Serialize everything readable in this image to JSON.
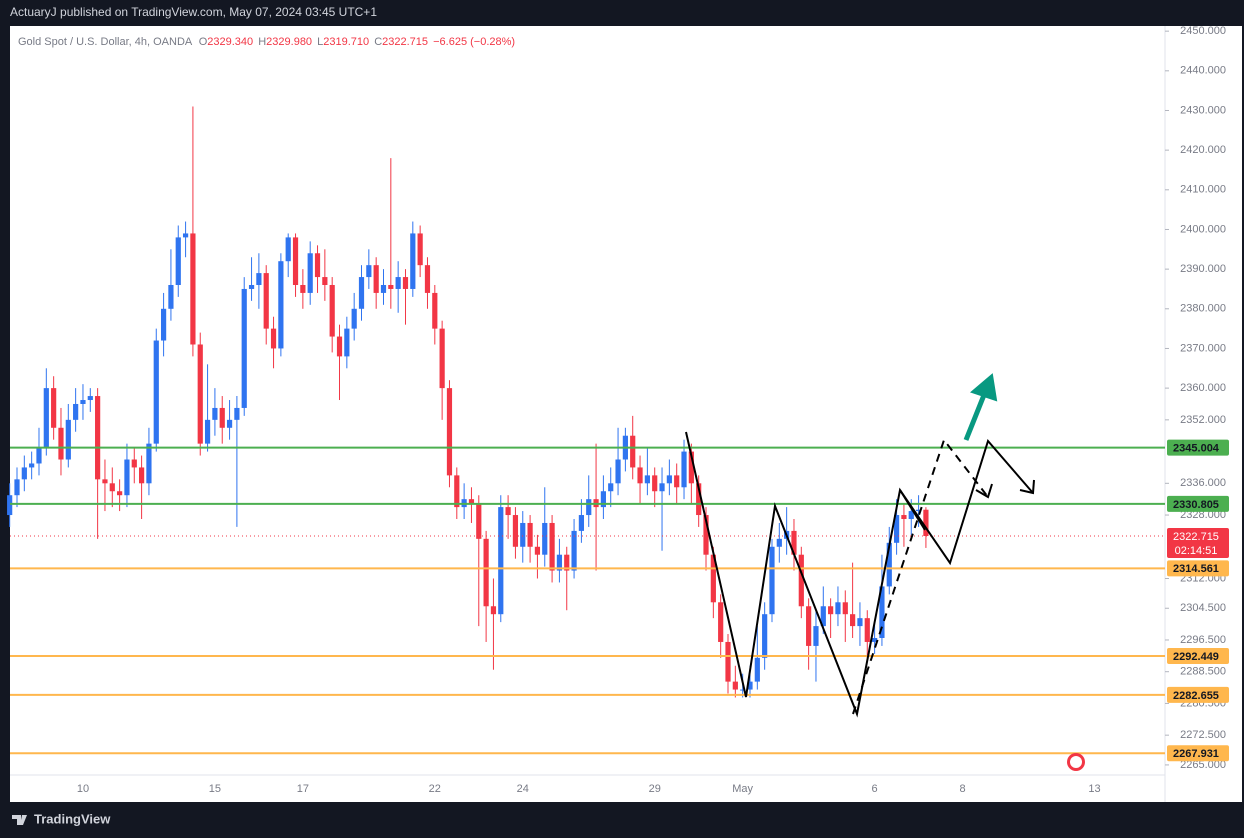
{
  "header": {
    "published": "ActuaryJ published on TradingView.com, May 07, 2024 03:45 UTC+1"
  },
  "footer": {
    "brand": "TradingView"
  },
  "chart_data": {
    "type": "candlestick",
    "symbol": "Gold Spot / U.S. Dollar, 4h, OANDA",
    "legend": [
      {
        "key": "O",
        "value": "2329.340"
      },
      {
        "key": "H",
        "value": "2329.980"
      },
      {
        "key": "L",
        "value": "2319.710"
      },
      {
        "key": "C",
        "value": "2322.715"
      }
    ],
    "change": "−6.625 (−0.28%)",
    "up_color": "#2f74f0",
    "down_color": "#f23645",
    "categories": [
      null,
      null,
      null,
      null,
      null,
      null,
      null,
      null,
      null,
      null,
      "10",
      null,
      null,
      null,
      null,
      null,
      null,
      null,
      null,
      null,
      null,
      null,
      null,
      null,
      null,
      null,
      null,
      null,
      "15",
      null,
      null,
      null,
      null,
      null,
      null,
      null,
      null,
      null,
      null,
      null,
      "17",
      null,
      null,
      null,
      null,
      null,
      null,
      null,
      null,
      null,
      null,
      null,
      null,
      null,
      null,
      null,
      null,
      null,
      "22",
      null,
      null,
      null,
      null,
      null,
      null,
      null,
      null,
      null,
      null,
      null,
      "24",
      null,
      null,
      null,
      null,
      null,
      null,
      null,
      null,
      null,
      null,
      null,
      null,
      null,
      null,
      null,
      null,
      null,
      "29",
      null,
      null,
      null,
      null,
      null,
      null,
      null,
      null,
      null,
      null,
      null,
      "May",
      null,
      null,
      null,
      null,
      null,
      null,
      null,
      null,
      null,
      null,
      null,
      null,
      null,
      null,
      null,
      null,
      null,
      "6",
      null,
      null,
      null,
      null,
      null,
      null,
      null,
      null,
      null,
      null,
      null,
      "8",
      null,
      null,
      null,
      null,
      null,
      null,
      null,
      null,
      null,
      null,
      null,
      null,
      null,
      null,
      null,
      null,
      null,
      "13"
    ],
    "open": [
      2328,
      2333,
      2337,
      2340,
      2341,
      2345,
      2360,
      2350,
      2342,
      2352,
      2356,
      2357,
      2358,
      2337,
      2336,
      2334,
      2333,
      2342,
      2340,
      2336,
      2346,
      2372,
      2380,
      2386,
      2398,
      2399,
      2371,
      2346,
      2352,
      2355,
      2350,
      2352,
      2355,
      2385,
      2386,
      2389,
      2375,
      2370,
      2392,
      2398,
      2386,
      2384,
      2394,
      2388,
      2386,
      2373,
      2368,
      2375,
      2380,
      2388,
      2391,
      2384,
      2386,
      2385,
      2388,
      2385,
      2399,
      2391,
      2384,
      2375,
      2360,
      2338,
      2330,
      2332,
      2331,
      2322,
      2305,
      2303,
      2330,
      2328,
      2320,
      2326,
      2320,
      2318,
      2326,
      2314,
      2318,
      2314,
      2324,
      2328,
      2332,
      2330,
      2334,
      2336,
      2342,
      2348,
      2340,
      2336,
      2338,
      2334,
      2336,
      2338,
      2335,
      2344,
      2336,
      2328,
      2318,
      2306,
      2296,
      2286,
      2284,
      2284,
      2286,
      2292,
      2303,
      2320,
      2322,
      2324,
      2318,
      2305,
      2295,
      2300,
      2305,
      2303,
      2306,
      2303,
      2300,
      2302,
      2296,
      2297,
      2310,
      2321,
      2328,
      2327,
      2329,
      2329.34,
      null,
      null,
      null,
      null,
      null,
      null,
      null,
      null,
      null,
      null,
      null,
      null,
      null,
      null,
      null,
      null,
      null,
      null,
      null,
      null,
      null,
      null,
      null
    ],
    "high": [
      2336,
      2340,
      2343,
      2344,
      2350,
      2365,
      2363,
      2355,
      2356,
      2360,
      2361,
      2360,
      2360,
      2342,
      2340,
      2337,
      2346,
      2345,
      2343,
      2350,
      2375,
      2384,
      2395,
      2401,
      2402,
      2431,
      2374,
      2366,
      2360,
      2358,
      2357,
      2358,
      2388,
      2393,
      2394,
      2391,
      2378,
      2394,
      2399,
      2399,
      2390,
      2397,
      2396,
      2395,
      2388,
      2376,
      2378,
      2384,
      2391,
      2395,
      2393,
      2390,
      2418,
      2392,
      2390,
      2402,
      2401,
      2393,
      2386,
      2377,
      2362,
      2340,
      2336,
      2335,
      2333,
      2324,
      2312,
      2333,
      2333,
      2330,
      2329,
      2328,
      2323,
      2335,
      2328,
      2322,
      2320,
      2327,
      2332,
      2338,
      2346,
      2338,
      2340,
      2350,
      2350,
      2353,
      2343,
      2345,
      2340,
      2340,
      2342,
      2341,
      2347,
      2346,
      2338,
      2330,
      2320,
      2308,
      2298,
      2290,
      2288,
      2290,
      2300,
      2306,
      2322,
      2326,
      2330,
      2327,
      2320,
      2307,
      2304,
      2310,
      2307,
      2310,
      2309,
      2316,
      2306,
      2304,
      2301,
      2318,
      2325,
      2332,
      2331,
      2332,
      2333,
      2329.98,
      null,
      null,
      null,
      null,
      null,
      null,
      null,
      null,
      null,
      null,
      null,
      null,
      null,
      null,
      null,
      null,
      null,
      null,
      null,
      null,
      null,
      null,
      null
    ],
    "low": [
      2325,
      2330,
      2334,
      2337,
      2338,
      2343,
      2347,
      2338,
      2340,
      2349,
      2352,
      2354,
      2322,
      2329,
      2330,
      2329,
      2330,
      2336,
      2327,
      2333,
      2344,
      2368,
      2377,
      2383,
      2393,
      2368,
      2343,
      2344,
      2348,
      2346,
      2347,
      2325,
      2353,
      2382,
      2380,
      2371,
      2365,
      2368,
      2388,
      2383,
      2380,
      2381,
      2384,
      2382,
      2369,
      2357,
      2365,
      2372,
      2377,
      2385,
      2380,
      2381,
      2380,
      2379,
      2376,
      2383,
      2388,
      2380,
      2371,
      2352,
      2335,
      2327,
      2327,
      2326,
      2300,
      2296,
      2289,
      2301,
      2322,
      2317,
      2316,
      2316,
      2312,
      2315,
      2311,
      2311,
      2304,
      2312,
      2321,
      2325,
      2314,
      2327,
      2330,
      2333,
      2339,
      2337,
      2331,
      2333,
      2330,
      2319,
      2333,
      2331,
      2332,
      2331,
      2325,
      2314,
      2302,
      2292,
      2283,
      2282,
      2282,
      2282,
      2284,
      2289,
      2301,
      2316,
      2318,
      2314,
      2302,
      2289,
      2286,
      2298,
      2297,
      2300,
      2296,
      2297,
      2295,
      2292,
      2293,
      2295,
      2308,
      2318,
      2320,
      2323,
      2325,
      2319.71,
      null,
      null,
      null,
      null,
      null,
      null,
      null,
      null,
      null,
      null,
      null,
      null,
      null,
      null,
      null,
      null,
      null,
      null,
      null,
      null,
      null,
      null,
      null
    ],
    "close": [
      2333,
      2337,
      2340,
      2341,
      2345,
      2360,
      2350,
      2342,
      2352,
      2356,
      2357,
      2358,
      2337,
      2336,
      2334,
      2333,
      2342,
      2340,
      2336,
      2346,
      2372,
      2380,
      2386,
      2398,
      2399,
      2371,
      2346,
      2352,
      2355,
      2350,
      2352,
      2355,
      2385,
      2386,
      2389,
      2375,
      2370,
      2392,
      2398,
      2386,
      2384,
      2394,
      2388,
      2386,
      2373,
      2368,
      2375,
      2380,
      2388,
      2391,
      2384,
      2386,
      2385,
      2388,
      2385,
      2399,
      2391,
      2384,
      2375,
      2360,
      2338,
      2330,
      2332,
      2331,
      2322,
      2305,
      2303,
      2330,
      2328,
      2320,
      2326,
      2320,
      2318,
      2326,
      2314,
      2318,
      2314,
      2324,
      2328,
      2332,
      2330,
      2334,
      2336,
      2342,
      2348,
      2340,
      2336,
      2338,
      2334,
      2336,
      2338,
      2335,
      2344,
      2336,
      2328,
      2318,
      2306,
      2296,
      2286,
      2284,
      2284,
      2286,
      2292,
      2303,
      2320,
      2322,
      2324,
      2318,
      2305,
      2295,
      2300,
      2305,
      2303,
      2306,
      2303,
      2300,
      2302,
      2296,
      2297,
      2310,
      2321,
      2328,
      2327,
      2329,
      2329.34,
      2322.715,
      null,
      null,
      null,
      null,
      null,
      null,
      null,
      null,
      null,
      null,
      null,
      null,
      null,
      null,
      null,
      null,
      null,
      null,
      null,
      null,
      null,
      null,
      null
    ],
    "ylim": [
      2261.7,
      2451.3
    ],
    "yticks": [
      {
        "value": 2450,
        "label": "2450.000"
      },
      {
        "value": 2440,
        "label": "2440.000"
      },
      {
        "value": 2430,
        "label": "2430.000"
      },
      {
        "value": 2420,
        "label": "2420.000"
      },
      {
        "value": 2410,
        "label": "2410.000"
      },
      {
        "value": 2400,
        "label": "2400.000"
      },
      {
        "value": 2390,
        "label": "2390.000"
      },
      {
        "value": 2380,
        "label": "2380.000"
      },
      {
        "value": 2370,
        "label": "2370.000"
      },
      {
        "value": 2360,
        "label": "2360.000"
      },
      {
        "value": 2352,
        "label": "2352.000"
      },
      {
        "value": 2336,
        "label": "2336.000"
      },
      {
        "value": 2328,
        "label": "2328.000"
      },
      {
        "value": 2312,
        "label": "2312.000"
      },
      {
        "value": 2304.5,
        "label": "2304.500"
      },
      {
        "value": 2296.5,
        "label": "2296.500"
      },
      {
        "value": 2288.5,
        "label": "2288.500"
      },
      {
        "value": 2280.5,
        "label": "2280.500"
      },
      {
        "value": 2272.5,
        "label": "2272.500"
      },
      {
        "value": 2265,
        "label": "2265.000"
      }
    ],
    "levels": [
      {
        "value": 2345.004,
        "label": "2345.004",
        "color": "#4caf50"
      },
      {
        "value": 2330.805,
        "label": "2330.805",
        "color": "#4caf50"
      },
      {
        "value": 2314.561,
        "label": "2314.561",
        "color": "#ffb74d"
      },
      {
        "value": 2292.449,
        "label": "2292.449",
        "color": "#ffb74d"
      },
      {
        "value": 2282.655,
        "label": "2282.655",
        "color": "#ffb74d"
      },
      {
        "value": 2267.931,
        "label": "2267.931",
        "color": "#ffb74d"
      }
    ],
    "last_price": {
      "value": 2322.715,
      "label": "2322.715",
      "countdown": "02:14:51",
      "color": "#f23645"
    }
  }
}
